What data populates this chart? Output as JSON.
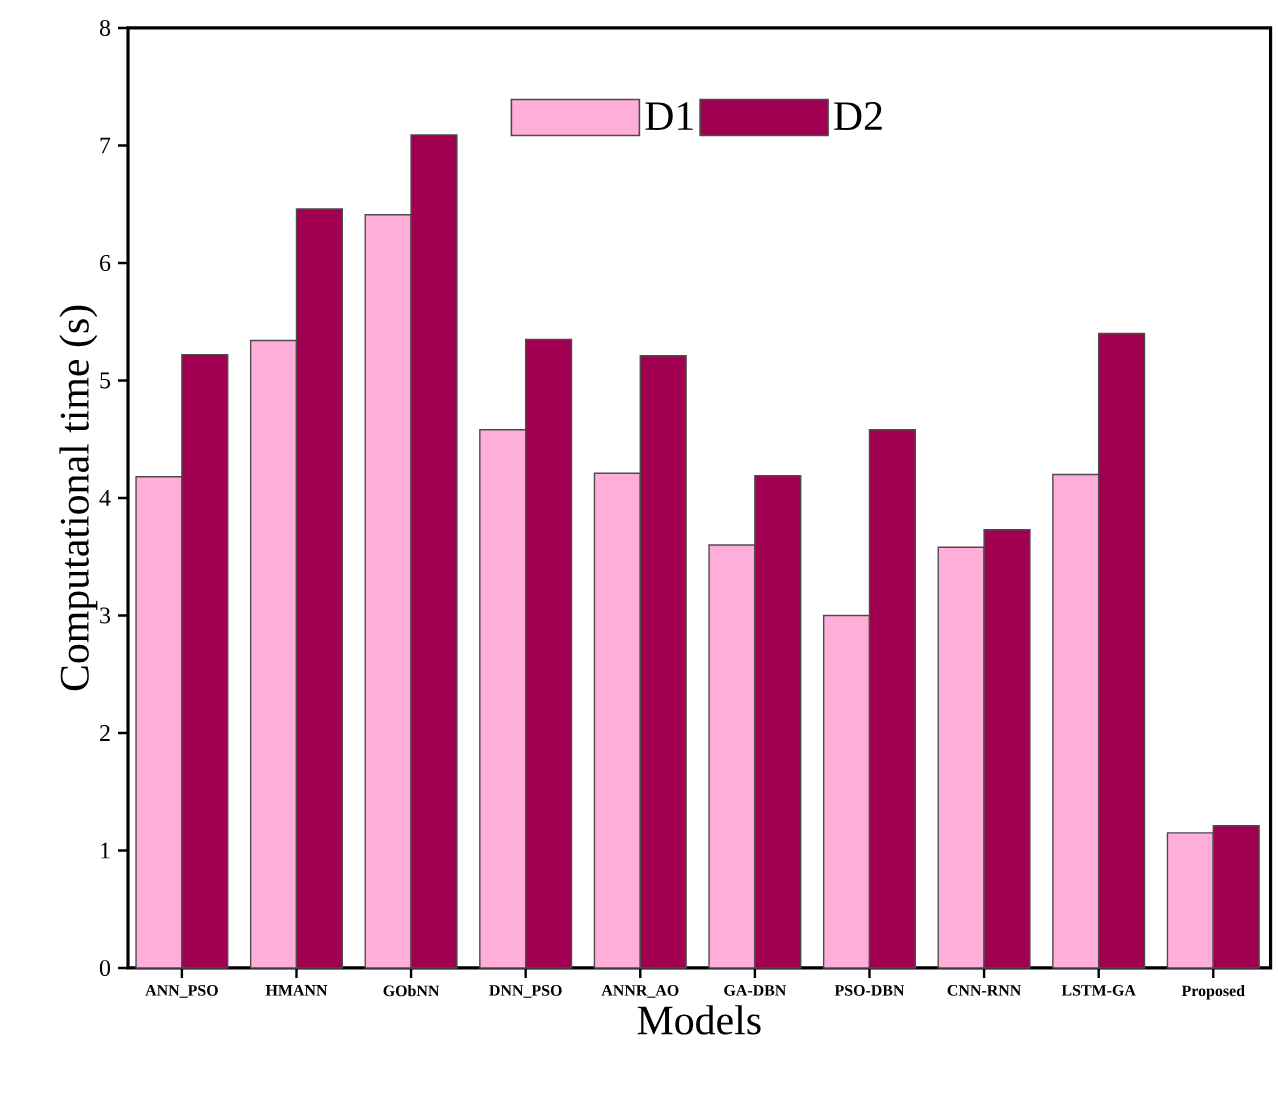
{
  "chart_data": {
    "type": "bar",
    "xlabel": "Models",
    "ylabel": "Computational time (s)",
    "categories": [
      "ANN_PSO",
      "HMANN",
      "GObNN",
      "DNN_PSO",
      "ANNR_AO",
      "GA-DBN",
      "PSO-DBN",
      "CNN-RNN",
      "LSTM-GA",
      "Proposed"
    ],
    "series": [
      {
        "name": "D1",
        "color": "#ffaed9",
        "values": [
          4.18,
          5.34,
          6.41,
          4.58,
          4.21,
          3.6,
          3.0,
          3.58,
          4.2,
          1.15
        ]
      },
      {
        "name": "D2",
        "color": "#a10050",
        "values": [
          5.22,
          6.46,
          7.09,
          5.35,
          5.21,
          4.19,
          4.58,
          3.73,
          5.4,
          1.21
        ]
      }
    ],
    "ylim": [
      0,
      8
    ],
    "yticks": [
      0,
      1,
      2,
      3,
      4,
      5,
      6,
      7,
      8
    ],
    "legend": "top"
  }
}
